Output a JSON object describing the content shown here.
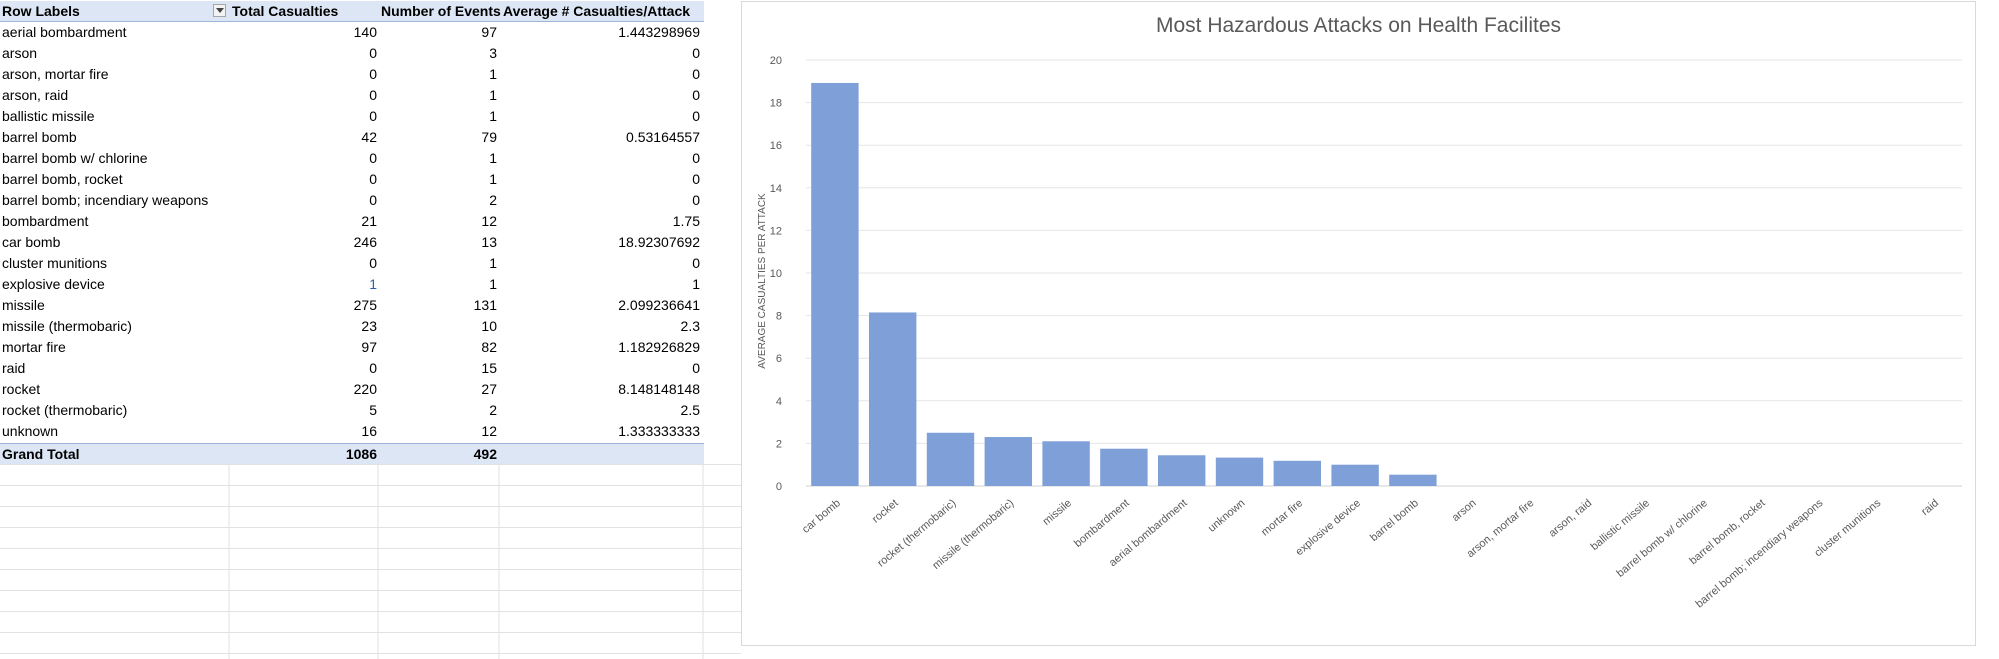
{
  "pivot": {
    "headers": {
      "row_labels": "Row Labels",
      "total_casualties": "Total Casualties",
      "number_of_events": "Number of Events",
      "avg_casualties": "Average # Casualties/Attack"
    },
    "rows": [
      {
        "label": "aerial bombardment",
        "total": "140",
        "events": "97",
        "avg": "1.443298969"
      },
      {
        "label": "arson",
        "total": "0",
        "events": "3",
        "avg": "0"
      },
      {
        "label": "arson, mortar fire",
        "total": "0",
        "events": "1",
        "avg": "0"
      },
      {
        "label": "arson, raid",
        "total": "0",
        "events": "1",
        "avg": "0"
      },
      {
        "label": "ballistic missile",
        "total": "0",
        "events": "1",
        "avg": "0"
      },
      {
        "label": "barrel bomb",
        "total": "42",
        "events": "79",
        "avg": "0.53164557"
      },
      {
        "label": "barrel bomb w/ chlorine",
        "total": "0",
        "events": "1",
        "avg": "0"
      },
      {
        "label": "barrel bomb, rocket",
        "total": "0",
        "events": "1",
        "avg": "0"
      },
      {
        "label": "barrel bomb; incendiary weapons",
        "total": "0",
        "events": "2",
        "avg": "0"
      },
      {
        "label": "bombardment",
        "total": "21",
        "events": "12",
        "avg": "1.75"
      },
      {
        "label": "car bomb",
        "total": "246",
        "events": "13",
        "avg": "18.92307692"
      },
      {
        "label": "cluster munitions",
        "total": "0",
        "events": "1",
        "avg": "0"
      },
      {
        "label": "explosive device",
        "total": "1",
        "events": "1",
        "avg": "1"
      },
      {
        "label": "missile",
        "total": "275",
        "events": "131",
        "avg": "2.099236641"
      },
      {
        "label": "missile (thermobaric)",
        "total": "23",
        "events": "10",
        "avg": "2.3"
      },
      {
        "label": "mortar fire",
        "total": "97",
        "events": "82",
        "avg": "1.182926829"
      },
      {
        "label": "raid",
        "total": "0",
        "events": "15",
        "avg": "0"
      },
      {
        "label": "rocket",
        "total": "220",
        "events": "27",
        "avg": "8.148148148"
      },
      {
        "label": "rocket (thermobaric)",
        "total": "5",
        "events": "2",
        "avg": "2.5"
      },
      {
        "label": "unknown",
        "total": "16",
        "events": "12",
        "avg": "1.333333333"
      }
    ],
    "grand_total": {
      "label": "Grand Total",
      "total": "1086",
      "events": "492"
    }
  },
  "colors": {
    "bar": "#7f9fd8",
    "pivot_header": "#dce6f5",
    "gridline": "#e6e6e6",
    "text": "#595959"
  },
  "chart_data": {
    "type": "bar",
    "title": "Most Hazardous Attacks on Health Facilites",
    "xlabel": "",
    "ylabel": "AVERAGE CASUALTIES PER ATTACK",
    "ylim": [
      0,
      20
    ],
    "yticks": [
      0,
      2,
      4,
      6,
      8,
      10,
      12,
      14,
      16,
      18,
      20
    ],
    "grid": true,
    "legend": "none",
    "categories": [
      "car bomb",
      "rocket",
      "rocket (thermobaric)",
      "missile (thermobaric)",
      "missile",
      "bombardment",
      "aerial bombardment",
      "unknown",
      "mortar fire",
      "explosive device",
      "barrel bomb",
      "arson",
      "arson, mortar fire",
      "arson, raid",
      "ballistic missile",
      "barrel bomb w/ chlorine",
      "barrel bomb, rocket",
      "barrel bomb; incendiary weapons",
      "cluster munitions",
      "raid"
    ],
    "values": [
      18.92307692,
      8.148148148,
      2.5,
      2.3,
      2.099236641,
      1.75,
      1.443298969,
      1.333333333,
      1.182926829,
      1,
      0.53164557,
      0,
      0,
      0,
      0,
      0,
      0,
      0,
      0,
      0
    ]
  }
}
